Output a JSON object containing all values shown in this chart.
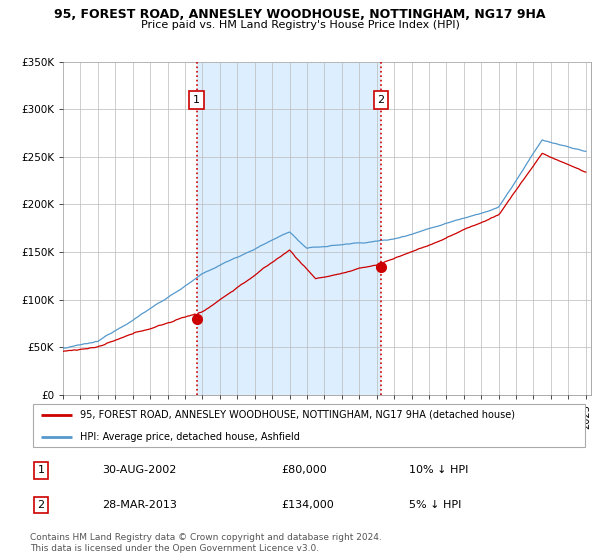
{
  "title": "95, FOREST ROAD, ANNESLEY WOODHOUSE, NOTTINGHAM, NG17 9HA",
  "subtitle": "Price paid vs. HM Land Registry's House Price Index (HPI)",
  "legend_line1": "95, FOREST ROAD, ANNESLEY WOODHOUSE, NOTTINGHAM, NG17 9HA (detached house)",
  "legend_line2": "HPI: Average price, detached house, Ashfield",
  "transaction1_date": "30-AUG-2002",
  "transaction1_price": "£80,000",
  "transaction1_hpi": "10% ↓ HPI",
  "transaction2_date": "28-MAR-2013",
  "transaction2_price": "£134,000",
  "transaction2_hpi": "5% ↓ HPI",
  "footer": "Contains HM Land Registry data © Crown copyright and database right 2024.\nThis data is licensed under the Open Government Licence v3.0.",
  "red_color": "#cc0000",
  "blue_color": "#5599cc",
  "shade_color": "#ddeeff",
  "vline_color": "#cc0000",
  "ylim": [
    0,
    350000
  ],
  "yticks": [
    0,
    50000,
    100000,
    150000,
    200000,
    250000,
    300000,
    350000
  ],
  "start_year": 1995,
  "end_year": 2025,
  "transaction1_year": 2002.67,
  "transaction2_year": 2013.25,
  "transaction1_value": 80000,
  "transaction2_value": 134000
}
